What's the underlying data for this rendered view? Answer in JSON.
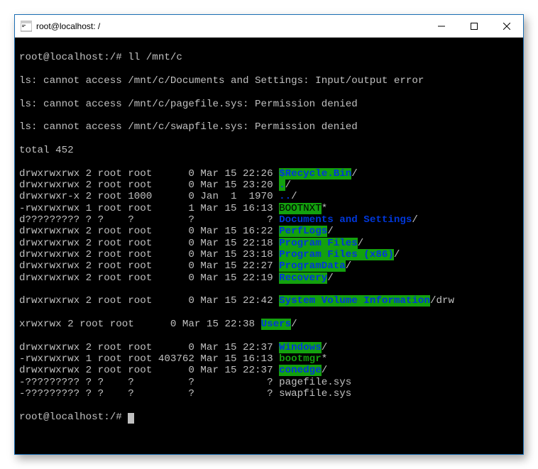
{
  "window": {
    "title": "root@localhost: /"
  },
  "terminal": {
    "prompt1": "root@localhost:/# ",
    "cmd1": "ll /mnt/c",
    "err1": "ls: cannot access /mnt/c/Documents and Settings: Input/output error",
    "err2": "ls: cannot access /mnt/c/pagefile.sys: Permission denied",
    "err3": "ls: cannot access /mnt/c/swapfile.sys: Permission denied",
    "total": "total 452",
    "rows": [
      {
        "perm": "drwxrwxrwx 2 root root      0 Mar 15 22:26 ",
        "name": "$Recycle.Bin",
        "suffix": "/",
        "cls": "dir-green"
      },
      {
        "perm": "drwxrwxrwx 2 root root      0 Mar 15 23:20 ",
        "name": ".",
        "suffix": "/",
        "cls": "dir-green"
      },
      {
        "perm": "drwxrwxr-x 2 root 1000      0 Jan  1  1970 ",
        "name": "..",
        "suffix": "/",
        "cls": "fg-blue-txt"
      },
      {
        "perm": "-rwxrwxrwx 1 root root      1 Mar 15 16:13 ",
        "name": "BOOTNXT",
        "suffix": "*",
        "cls": "fg-bgreen"
      },
      {
        "perm": "d????????? ? ?    ?         ?            ? ",
        "name": "Documents and Settings",
        "suffix": "/",
        "cls": "fg-blue-txt"
      },
      {
        "perm": "drwxrwxrwx 2 root root      0 Mar 15 16:22 ",
        "name": "PerfLogs",
        "suffix": "/",
        "cls": "dir-green"
      },
      {
        "perm": "drwxrwxrwx 2 root root      0 Mar 15 22:18 ",
        "name": "Program Files",
        "suffix": "/",
        "cls": "dir-green"
      },
      {
        "perm": "drwxrwxrwx 2 root root      0 Mar 15 23:18 ",
        "name": "Program Files (x86)",
        "suffix": "/",
        "cls": "dir-green"
      },
      {
        "perm": "drwxrwxrwx 2 root root      0 Mar 15 22:27 ",
        "name": "ProgramData",
        "suffix": "/",
        "cls": "dir-green"
      },
      {
        "perm": "drwxrwxrwx 2 root root      0 Mar 15 22:19 ",
        "name": "Recovery",
        "suffix": "/",
        "cls": "dir-green"
      }
    ],
    "sysvol_prefix": "drwxrwxrwx 2 root root      0 Mar 15 22:42 ",
    "sysvol_name": "System Volume Information",
    "sysvol_suffix": "/",
    "wrap_tail": "drw",
    "users_prefix": "xrwxrwx 2 root root      0 Mar 15 22:38 ",
    "users_name": "Users",
    "users_suffix": "/",
    "rows2": [
      {
        "perm": "drwxrwxrwx 2 root root      0 Mar 15 22:37 ",
        "name": "Windows",
        "suffix": "/",
        "cls": "dir-green"
      },
      {
        "perm": "-rwxrwxrwx 1 root root 403762 Mar 15 16:13 ",
        "name": "bootmgr",
        "suffix": "*",
        "cls": "fg-green-txt"
      },
      {
        "perm": "drwxrwxrwx 2 root root      0 Mar 15 22:37 ",
        "name": "conedge",
        "suffix": "/",
        "cls": "dir-green"
      },
      {
        "perm": "-????????? ? ?    ?         ?            ? ",
        "name": "pagefile.sys",
        "suffix": "",
        "cls": ""
      },
      {
        "perm": "-????????? ? ?    ?         ?            ? ",
        "name": "swapfile.sys",
        "suffix": "",
        "cls": ""
      }
    ],
    "prompt2": "root@localhost:/# "
  },
  "colors": {
    "bg": "#000000",
    "fg": "#c0c0c0",
    "dir_bg": "#13a10e",
    "dir_fg": "#0037da",
    "exec_fg": "#13a10e"
  }
}
